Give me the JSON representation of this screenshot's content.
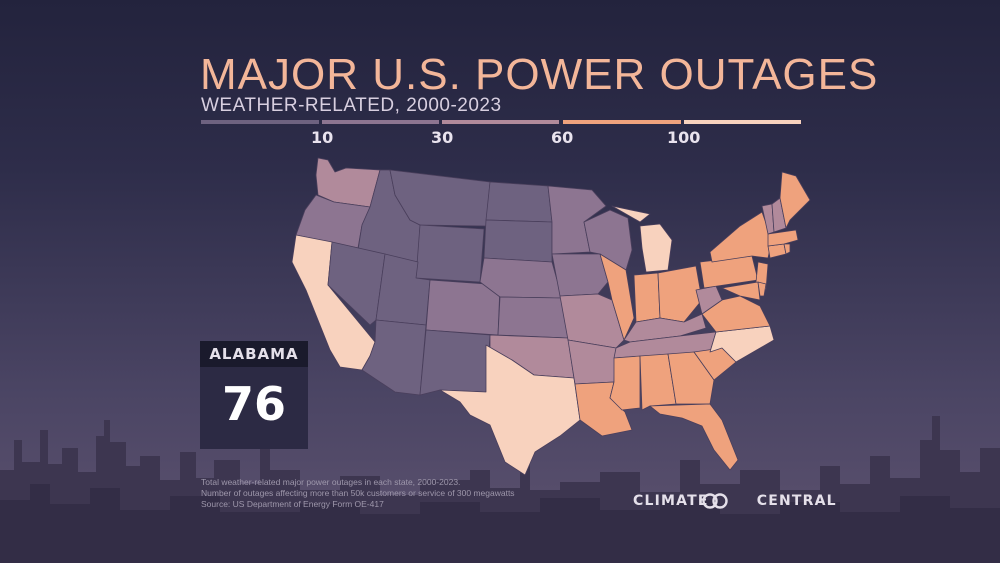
{
  "title": "MAJOR U.S. POWER OUTAGES",
  "subtitle": "WEATHER-RELATED, 2000-2023",
  "legend": {
    "ticks": [
      "10",
      "30",
      "60",
      "100"
    ],
    "colors": [
      "#6e6280",
      "#8d7591",
      "#b18a9b",
      "#efa27d",
      "#f8d2be"
    ]
  },
  "highlight": {
    "state": "ALABAMA",
    "value": "76"
  },
  "footnotes": [
    "Total weather-related major power outages in each state, 2000-2023.",
    "Number of outages affecting more than 50k customers or service of 300 megawatts",
    "Source: US Department of Energy Form OE-417"
  ],
  "brand": {
    "left": "CLIMATE",
    "right": "CENTRAL"
  }
}
